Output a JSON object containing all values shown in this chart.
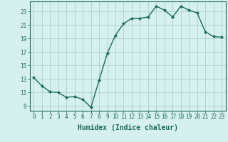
{
  "x": [
    0,
    1,
    2,
    3,
    4,
    5,
    6,
    7,
    8,
    9,
    10,
    11,
    12,
    13,
    14,
    15,
    16,
    17,
    18,
    19,
    20,
    21,
    22,
    23
  ],
  "y": [
    13.2,
    12.0,
    11.1,
    11.0,
    10.3,
    10.4,
    10.0,
    8.8,
    12.8,
    16.8,
    19.5,
    21.2,
    22.0,
    22.0,
    22.2,
    23.8,
    23.2,
    22.2,
    23.8,
    23.2,
    22.8,
    20.0,
    19.3,
    19.2
  ],
  "line_color": "#1a6b5a",
  "marker": "D",
  "marker_size": 2.0,
  "bg_color": "#d6f0ef",
  "grid_color": "#aacfcf",
  "xlabel": "Humidex (Indice chaleur)",
  "xlabel_fontsize": 7,
  "yticks": [
    9,
    11,
    13,
    15,
    17,
    19,
    21,
    23
  ],
  "xticks": [
    0,
    1,
    2,
    3,
    4,
    5,
    6,
    7,
    8,
    9,
    10,
    11,
    12,
    13,
    14,
    15,
    16,
    17,
    18,
    19,
    20,
    21,
    22,
    23
  ],
  "ylim": [
    8.3,
    24.5
  ],
  "xlim": [
    -0.5,
    23.5
  ],
  "tick_fontsize": 5.5,
  "line_width": 1.0
}
